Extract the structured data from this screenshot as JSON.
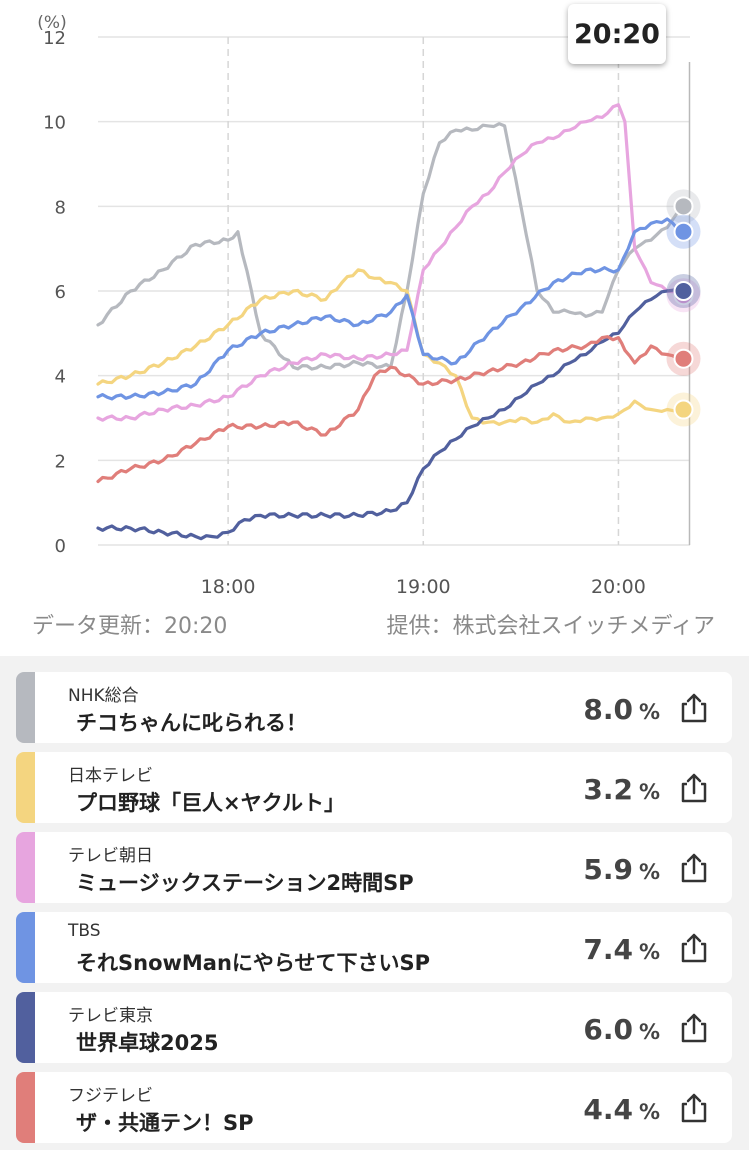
{
  "header": {
    "current_time": "20:20"
  },
  "footer": {
    "updated_label": "データ更新：20:20",
    "provider_label": "提供：株式会社スイッチメディア"
  },
  "chart_data": {
    "type": "line",
    "y_unit": "(%)",
    "ylim": [
      0,
      12
    ],
    "y_ticks": [
      "0",
      "2",
      "4",
      "6",
      "8",
      "10",
      "12"
    ],
    "x_ticks": [
      "18:00",
      "19:00",
      "20:00"
    ],
    "x_range": [
      "17:20",
      "20:22"
    ],
    "grid": true,
    "series": [
      {
        "name": "NHK総合",
        "color": "#b6b9bf",
        "x": [
          "17:20",
          "17:30",
          "17:40",
          "17:50",
          "18:00",
          "18:03",
          "18:10",
          "18:20",
          "18:30",
          "18:40",
          "18:50",
          "18:55",
          "19:00",
          "19:05",
          "19:10",
          "19:15",
          "19:20",
          "19:25",
          "19:30",
          "19:35",
          "19:40",
          "19:45",
          "19:50",
          "19:55",
          "20:00",
          "20:05",
          "20:10",
          "20:15",
          "20:20"
        ],
        "y": [
          5.2,
          6.0,
          6.5,
          7.1,
          7.2,
          7.4,
          5.0,
          4.2,
          4.2,
          4.3,
          4.2,
          6.0,
          8.3,
          9.5,
          9.8,
          9.8,
          9.9,
          9.9,
          8.0,
          6.0,
          5.5,
          5.5,
          5.4,
          5.5,
          6.5,
          7.0,
          7.2,
          7.5,
          8.0
        ]
      },
      {
        "name": "日本テレビ",
        "color": "#f4d580",
        "x": [
          "17:20",
          "17:30",
          "17:40",
          "17:50",
          "18:00",
          "18:10",
          "18:20",
          "18:30",
          "18:35",
          "18:40",
          "18:45",
          "18:50",
          "18:55",
          "19:00",
          "19:05",
          "19:10",
          "19:15",
          "19:20",
          "19:25",
          "19:30",
          "19:35",
          "19:40",
          "19:45",
          "19:50",
          "19:55",
          "20:00",
          "20:05",
          "20:10",
          "20:15",
          "20:20"
        ],
        "y": [
          3.8,
          4.0,
          4.3,
          4.7,
          5.2,
          5.8,
          6.0,
          5.8,
          6.2,
          6.5,
          6.3,
          6.2,
          6.0,
          4.5,
          4.3,
          4.0,
          3.0,
          2.9,
          2.9,
          3.0,
          2.9,
          3.1,
          2.9,
          3.0,
          3.0,
          3.1,
          3.4,
          3.2,
          3.2,
          3.2
        ]
      },
      {
        "name": "テレビ朝日",
        "color": "#e7a5df",
        "x": [
          "17:20",
          "17:30",
          "17:40",
          "17:50",
          "18:00",
          "18:10",
          "18:20",
          "18:30",
          "18:40",
          "18:50",
          "18:55",
          "19:00",
          "19:05",
          "19:10",
          "19:15",
          "19:20",
          "19:25",
          "19:30",
          "19:35",
          "19:40",
          "19:45",
          "19:50",
          "19:55",
          "20:00",
          "20:02",
          "20:05",
          "20:10",
          "20:15",
          "20:20"
        ],
        "y": [
          3.0,
          3.0,
          3.2,
          3.3,
          3.5,
          4.0,
          4.3,
          4.5,
          4.4,
          4.5,
          4.6,
          6.5,
          7.0,
          7.5,
          8.0,
          8.3,
          8.8,
          9.2,
          9.5,
          9.6,
          9.8,
          10.0,
          10.1,
          10.4,
          10.0,
          7.0,
          6.2,
          6.0,
          5.9
        ]
      },
      {
        "name": "TBS",
        "color": "#6f94e3",
        "x": [
          "17:20",
          "17:30",
          "17:40",
          "17:50",
          "18:00",
          "18:10",
          "18:20",
          "18:30",
          "18:40",
          "18:50",
          "18:55",
          "19:00",
          "19:10",
          "19:20",
          "19:30",
          "19:40",
          "19:50",
          "20:00",
          "20:03",
          "20:05",
          "20:10",
          "20:15",
          "20:20"
        ],
        "y": [
          3.5,
          3.5,
          3.6,
          3.8,
          4.6,
          5.0,
          5.2,
          5.4,
          5.2,
          5.5,
          5.9,
          4.5,
          4.3,
          5.0,
          5.6,
          6.2,
          6.5,
          6.5,
          7.0,
          7.4,
          7.6,
          7.7,
          7.4
        ]
      },
      {
        "name": "テレビ東京",
        "color": "#51609e",
        "x": [
          "17:20",
          "17:30",
          "17:40",
          "17:50",
          "17:55",
          "18:00",
          "18:05",
          "18:10",
          "18:20",
          "18:30",
          "18:40",
          "18:50",
          "18:55",
          "19:00",
          "19:05",
          "19:10",
          "19:15",
          "19:20",
          "19:25",
          "19:30",
          "19:35",
          "19:40",
          "19:45",
          "19:50",
          "19:55",
          "20:00",
          "20:05",
          "20:10",
          "20:15",
          "20:20"
        ],
        "y": [
          0.4,
          0.4,
          0.3,
          0.2,
          0.2,
          0.3,
          0.6,
          0.7,
          0.7,
          0.7,
          0.7,
          0.8,
          1.0,
          1.8,
          2.2,
          2.5,
          2.8,
          3.0,
          3.2,
          3.5,
          3.8,
          4.0,
          4.3,
          4.5,
          4.8,
          5.0,
          5.5,
          5.8,
          6.0,
          6.0
        ]
      },
      {
        "name": "フジテレビ",
        "color": "#e07e7a",
        "x": [
          "17:20",
          "17:30",
          "17:40",
          "17:50",
          "18:00",
          "18:10",
          "18:20",
          "18:30",
          "18:40",
          "18:45",
          "18:50",
          "19:00",
          "19:10",
          "19:20",
          "19:30",
          "19:40",
          "19:50",
          "19:55",
          "20:00",
          "20:02",
          "20:05",
          "20:10",
          "20:15",
          "20:20"
        ],
        "y": [
          1.5,
          1.8,
          2.0,
          2.4,
          2.8,
          2.8,
          2.9,
          2.6,
          3.2,
          4.0,
          4.2,
          3.8,
          3.9,
          4.1,
          4.3,
          4.6,
          4.7,
          4.9,
          4.9,
          4.6,
          4.3,
          4.7,
          4.5,
          4.4
        ]
      }
    ]
  },
  "programs": [
    {
      "station": "NHK総合",
      "program": "チコちゃんに叱られる！",
      "rating": "8.0",
      "unit": "%",
      "color": "#b6b9bf"
    },
    {
      "station": "日本テレビ",
      "program": "プロ野球「巨人×ヤクルト」",
      "rating": "3.2",
      "unit": "%",
      "color": "#f4d580"
    },
    {
      "station": "テレビ朝日",
      "program": "ミュージックステーション2時間SP",
      "rating": "5.9",
      "unit": "%",
      "color": "#e7a5df"
    },
    {
      "station": "TBS",
      "program": "それSnowManにやらせて下さいSP",
      "rating": "7.4",
      "unit": "%",
      "color": "#6f94e3"
    },
    {
      "station": "テレビ東京",
      "program": "世界卓球2025",
      "rating": "6.0",
      "unit": "%",
      "color": "#51609e"
    },
    {
      "station": "フジテレビ",
      "program": "ザ・共通テン！SP",
      "rating": "4.4",
      "unit": "%",
      "color": "#e07e7a"
    }
  ],
  "icons": {
    "share": "share-icon"
  }
}
